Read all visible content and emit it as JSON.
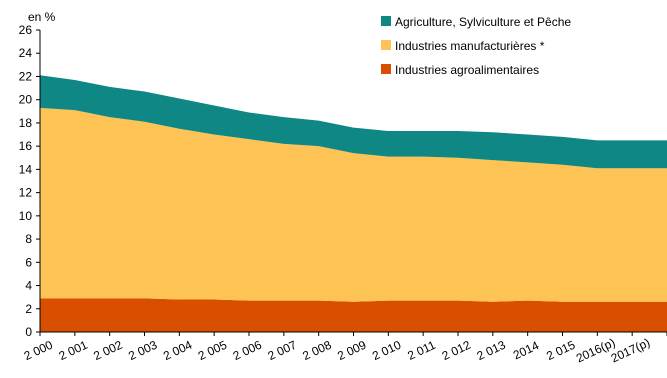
{
  "chart_data": {
    "type": "area",
    "stacked": true,
    "y_unit_label": "en %",
    "ylim": [
      0,
      26
    ],
    "y_ticks": [
      0,
      2,
      4,
      6,
      8,
      10,
      12,
      14,
      16,
      18,
      20,
      22,
      24,
      26
    ],
    "grid": false,
    "legend_position": "top-right",
    "categories": [
      "2 000",
      "2 001",
      "2 002",
      "2 003",
      "2 004",
      "2 005",
      "2 006",
      "2 007",
      "2 008",
      "2 009",
      "2 010",
      "2 011",
      "2 012",
      "2 013",
      "2014",
      "2 015",
      "2016(p)",
      "2017(p)"
    ],
    "series": [
      {
        "name": "Industries agroalimentaires",
        "color": "#d94f00",
        "values": [
          2.9,
          2.9,
          2.9,
          2.9,
          2.8,
          2.8,
          2.7,
          2.7,
          2.7,
          2.6,
          2.7,
          2.7,
          2.7,
          2.6,
          2.7,
          2.6,
          2.6,
          2.6
        ]
      },
      {
        "name": "Industries manufacturières *",
        "color": "#fdc355",
        "values": [
          16.4,
          16.2,
          15.6,
          15.2,
          14.7,
          14.2,
          13.9,
          13.5,
          13.3,
          12.8,
          12.4,
          12.4,
          12.3,
          12.2,
          11.9,
          11.8,
          11.5,
          11.5
        ]
      },
      {
        "name": "Agriculture, Sylviculture et Pêche",
        "color": "#0f8785",
        "values": [
          2.8,
          2.6,
          2.6,
          2.6,
          2.6,
          2.5,
          2.3,
          2.3,
          2.2,
          2.2,
          2.2,
          2.2,
          2.3,
          2.4,
          2.4,
          2.4,
          2.4,
          2.4
        ]
      }
    ]
  }
}
